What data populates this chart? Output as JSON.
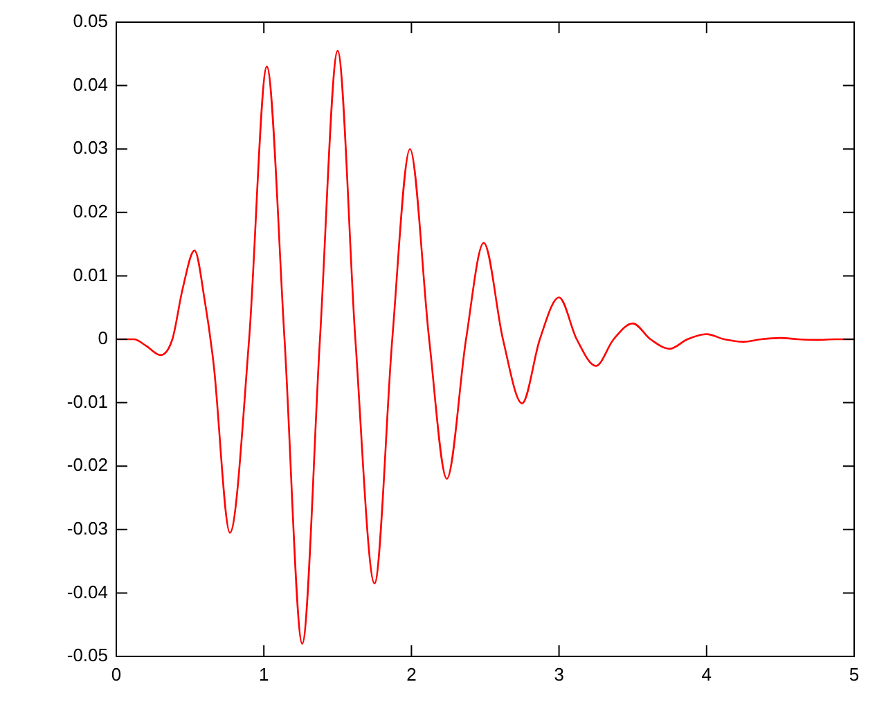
{
  "chart_data": {
    "type": "line",
    "xlim": [
      0,
      5
    ],
    "ylim": [
      -0.05,
      0.05
    ],
    "xticks": [
      0,
      1,
      2,
      3,
      4,
      5
    ],
    "yticks": [
      -0.05,
      -0.04,
      -0.03,
      -0.02,
      -0.01,
      0,
      0.01,
      0.02,
      0.03,
      0.04,
      0.05
    ],
    "marker": "none",
    "line_style": "solid",
    "series": [
      {
        "color": "#ff0000",
        "x": [
          0,
          0.12,
          0.2,
          0.3,
          0.38,
          0.45,
          0.53,
          0.6,
          0.66,
          0.77,
          0.9,
          1.02,
          1.14,
          1.26,
          1.38,
          1.5,
          1.62,
          1.75,
          1.87,
          1.99,
          2.12,
          2.24,
          2.37,
          2.49,
          2.62,
          2.75,
          2.87,
          3.0,
          3.12,
          3.25,
          3.37,
          3.5,
          3.62,
          3.75,
          3.87,
          4.0,
          4.12,
          4.25,
          4.37,
          4.5,
          4.62,
          4.75,
          4.87,
          5
        ],
        "values": [
          0,
          0,
          -0.001,
          -0.0025,
          0,
          0.008,
          0.014,
          0.006,
          -0.004,
          -0.0305,
          0,
          0.043,
          0,
          -0.048,
          0,
          0.0455,
          0,
          -0.0385,
          0,
          0.03,
          0,
          -0.022,
          0,
          0.0152,
          0,
          -0.0101,
          0,
          0.0066,
          0,
          -0.0042,
          0,
          0.0025,
          0,
          -0.0015,
          0,
          0.0008,
          0,
          -0.0004,
          0,
          0.0002,
          0,
          -0.0001,
          0,
          0
        ]
      }
    ]
  }
}
